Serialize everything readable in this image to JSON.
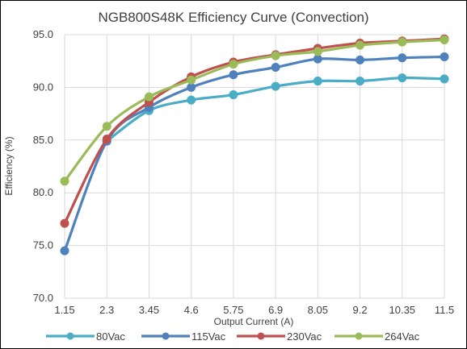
{
  "chart_data": {
    "type": "line",
    "title": "NGB800S48K Efficiency Curve (Convection)",
    "xlabel": "Output Current (A)",
    "ylabel": "Efficiency (%)",
    "categories": [
      "1.15",
      "2.3",
      "3.45",
      "4.6",
      "5.75",
      "6.9",
      "8.05",
      "9.2",
      "10.35",
      "11.5"
    ],
    "yticks": [
      "70.0",
      "75.0",
      "80.0",
      "85.0",
      "90.0",
      "95.0"
    ],
    "ylim": [
      70,
      95
    ],
    "grid": true,
    "legend_position": "bottom",
    "series": [
      {
        "name": "80Vac",
        "color": "#4BACC6",
        "values": [
          null,
          84.9,
          87.8,
          88.8,
          89.3,
          90.1,
          90.6,
          90.6,
          90.9,
          90.8
        ]
      },
      {
        "name": "115Vac",
        "color": "#4F81BD",
        "values": [
          74.5,
          84.9,
          88.1,
          90.0,
          91.2,
          91.9,
          92.7,
          92.6,
          92.8,
          92.9
        ]
      },
      {
        "name": "230Vac",
        "color": "#C0504D",
        "values": [
          77.1,
          85.1,
          88.6,
          91.0,
          92.4,
          93.1,
          93.7,
          94.2,
          94.4,
          94.6
        ]
      },
      {
        "name": "264Vac",
        "color": "#9BBB59",
        "values": [
          81.1,
          86.3,
          89.1,
          90.7,
          92.2,
          93.0,
          93.4,
          94.0,
          94.3,
          94.5
        ]
      }
    ]
  }
}
